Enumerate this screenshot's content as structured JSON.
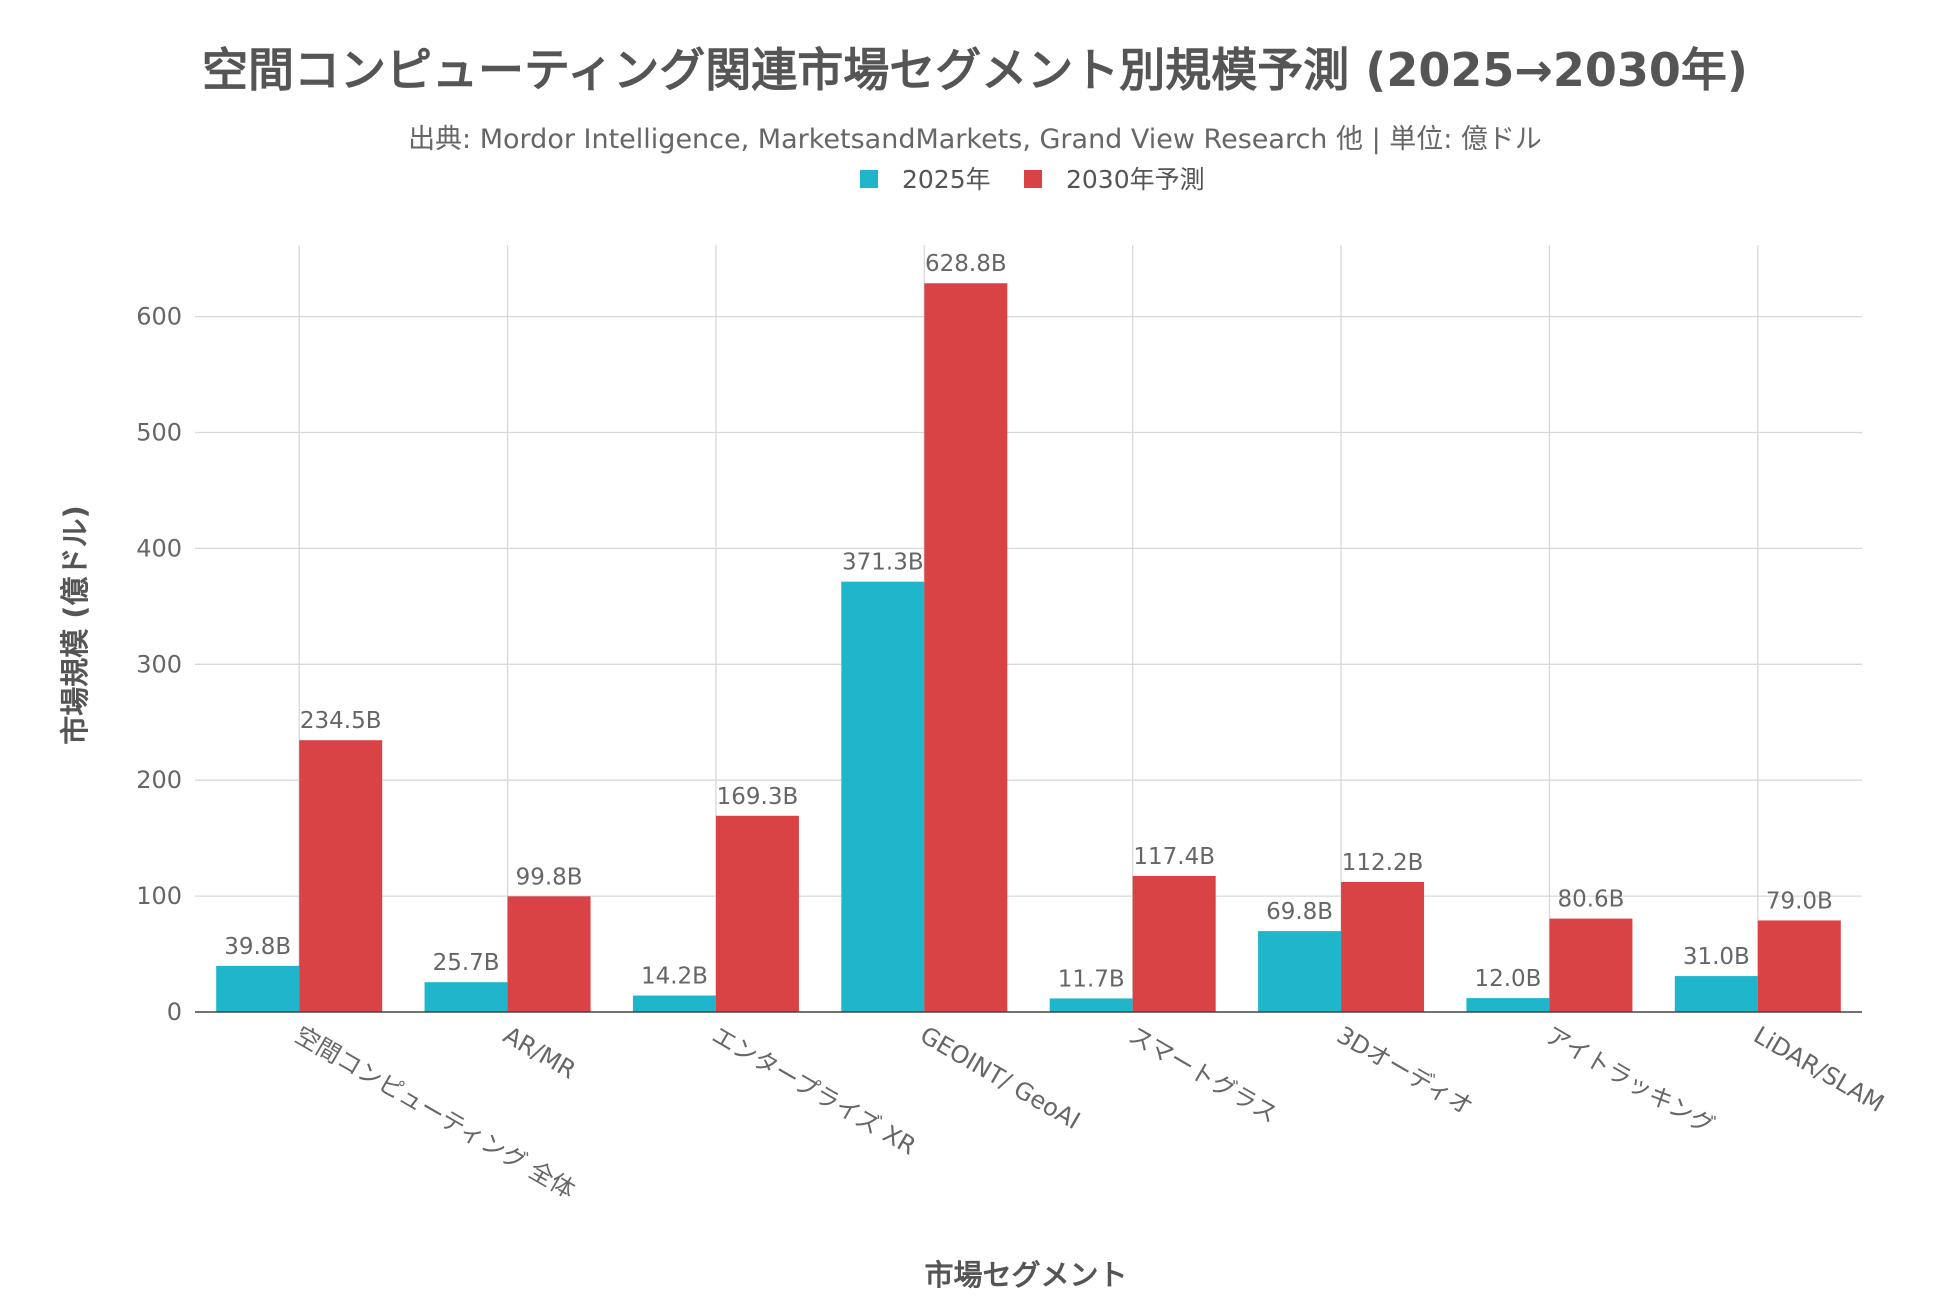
{
  "chart_data": {
    "type": "bar",
    "title": "空間コンピューティング関連市場セグメント別規模予測 (2025→2030年)",
    "subtitle": "出典: Mordor Intelligence, MarketsandMarkets, Grand View Research 他 | 単位: 億ドル",
    "xlabel": "市場セグメント",
    "ylabel": "市場規模 (億ドル)",
    "ylim": [
      0,
      660
    ],
    "yticks": [
      0,
      100,
      200,
      300,
      400,
      500,
      600
    ],
    "grid": true,
    "legend_position": "top-center",
    "categories": [
      "空間コンピューティング 全体",
      "AR/MR",
      "エンタープライズ XR",
      "GEOINT/ GeoAI",
      "スマートグラス",
      "3Dオーディオ",
      "アイトラッキング",
      "LiDAR/SLAM"
    ],
    "series": [
      {
        "name": "2025年",
        "color": "#1fb6cc",
        "values": [
          39.8,
          25.7,
          14.2,
          371.3,
          11.7,
          69.8,
          12.0,
          31.0
        ],
        "labels": [
          "39.8B",
          "25.7B",
          "14.2B",
          "371.3B",
          "11.7B",
          "69.8B",
          "12.0B",
          "31.0B"
        ]
      },
      {
        "name": "2030年予測",
        "color": "#d94345",
        "values": [
          234.5,
          99.8,
          169.3,
          628.8,
          117.4,
          112.2,
          80.6,
          79.0
        ],
        "labels": [
          "234.5B",
          "99.8B",
          "169.3B",
          "628.8B",
          "117.4B",
          "112.2B",
          "80.6B",
          "79.0B"
        ]
      }
    ]
  }
}
